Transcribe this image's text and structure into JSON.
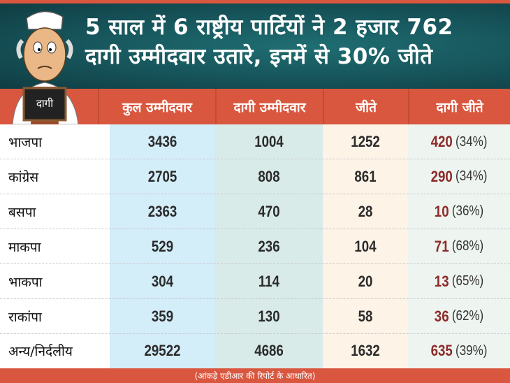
{
  "title": {
    "line1": "5 साल में 6 राष्ट्रीय पार्टियों ने 2 हजार 762",
    "line2": "दागी उम्मीदवार उतारे, इनमें से 30% जीते"
  },
  "illustration": {
    "board_text": "दागी"
  },
  "headers": [
    "कुल उम्मीदवार",
    "दागी उम्मीदवार",
    "जीते",
    "दागी जीते"
  ],
  "rows": [
    {
      "party": "भाजपा",
      "total": "3436",
      "tainted": "1004",
      "won": "1252",
      "tainted_won": "420",
      "pct": "(34%)"
    },
    {
      "party": "कांग्रेस",
      "total": "2705",
      "tainted": "808",
      "won": "861",
      "tainted_won": "290",
      "pct": "(34%)"
    },
    {
      "party": "बसपा",
      "total": "2363",
      "tainted": "470",
      "won": "28",
      "tainted_won": "10",
      "pct": "(36%)"
    },
    {
      "party": "माकपा",
      "total": "529",
      "tainted": "236",
      "won": "104",
      "tainted_won": "71",
      "pct": "(68%)"
    },
    {
      "party": "भाकपा",
      "total": "304",
      "tainted": "114",
      "won": "20",
      "tainted_won": "13",
      "pct": "(65%)"
    },
    {
      "party": "राकांपा",
      "total": "359",
      "tainted": "130",
      "won": "58",
      "tainted_won": "36",
      "pct": "(62%)"
    },
    {
      "party": "अन्य/निर्दलीय",
      "total": "29522",
      "tainted": "4686",
      "won": "1632",
      "tainted_won": "635",
      "pct": "(39%)"
    }
  ],
  "footer": "(आंकड़े एडीआर की रिपोर्ट के आधारित)",
  "colors": {
    "accent": "#d9573f",
    "banner": "#16545a",
    "col1": "#d3edf9",
    "col2": "#d9ebe9",
    "col3": "#fdf3e7",
    "col4": "#eef4ef",
    "taint": "#8e2a2a"
  }
}
